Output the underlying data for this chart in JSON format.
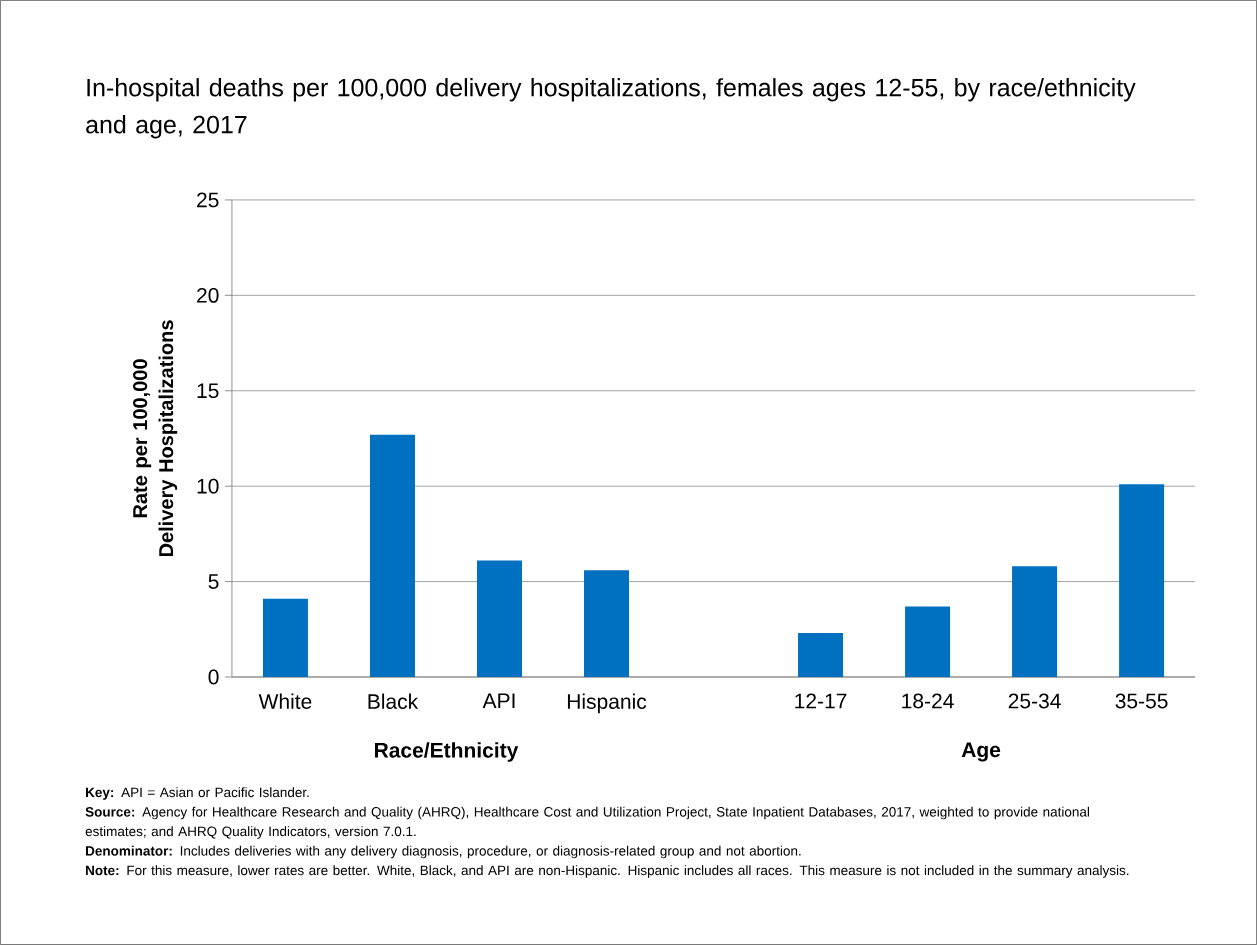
{
  "chart_data": {
    "type": "bar",
    "title": "In-hospital deaths per 100,000 delivery hospitalizations, females ages 12-55, by race/ethnicity and age, 2017",
    "ylabel": "Rate per 100,000 Delivery Hospitalizations",
    "categories": [
      "White",
      "Black",
      "API",
      "Hispanic",
      null,
      "12-17",
      "18-24",
      "25-34",
      "35-55"
    ],
    "values": [
      4.1,
      12.7,
      6.1,
      5.6,
      null,
      2.3,
      3.7,
      5.8,
      10.1
    ],
    "color": "#0070c0",
    "ylim": [
      0,
      25
    ],
    "yticks": [
      0,
      5,
      10,
      15,
      20,
      25
    ],
    "grid": "y",
    "annotations": [
      "Race/Ethnicity",
      "Age",
      "**Key:** API = Asian or Pacific Islander.",
      "**Source:** Agency for Healthcare Research and Quality (AHRQ), Healthcare Cost and Utilization Project, State Inpatient Databases, 2017, weighted to provide national estimates; and AHRQ Quality Indicators, version 7.0.1.",
      "**Denominator:** Includes deliveries with any delivery diagnosis, procedure, or diagnosis-related group and not abortion.",
      "**Note:** For this measure, lower rates are better. White, Black, and API are non-Hispanic. Hispanic includes all races. This measure is not included in the summary analysis."
    ]
  }
}
